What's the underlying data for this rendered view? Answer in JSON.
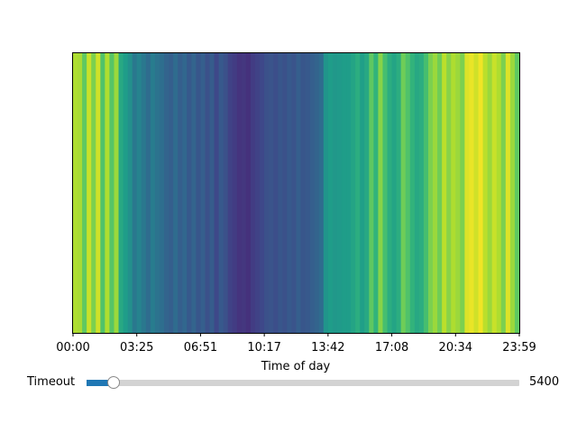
{
  "chart_data": {
    "type": "heatmap",
    "title": "",
    "xlabel": "Time of day",
    "ylabel": "",
    "colormap": "viridis",
    "x_ticks": [
      "00:00",
      "03:25",
      "06:51",
      "10:17",
      "13:42",
      "17:08",
      "20:34",
      "23:59"
    ],
    "x_range_minutes": [
      0,
      1439
    ],
    "value_range": [
      0,
      1
    ],
    "column_values": [
      0.88,
      0.87,
      0.75,
      0.92,
      0.8,
      0.93,
      0.72,
      0.88,
      0.73,
      0.85,
      0.6,
      0.55,
      0.5,
      0.4,
      0.45,
      0.4,
      0.35,
      0.42,
      0.38,
      0.36,
      0.32,
      0.3,
      0.35,
      0.3,
      0.33,
      0.28,
      0.32,
      0.27,
      0.3,
      0.25,
      0.29,
      0.22,
      0.28,
      0.25,
      0.2,
      0.18,
      0.15,
      0.16,
      0.14,
      0.18,
      0.2,
      0.22,
      0.25,
      0.26,
      0.24,
      0.27,
      0.25,
      0.28,
      0.26,
      0.3,
      0.27,
      0.28,
      0.3,
      0.32,
      0.35,
      0.52,
      0.55,
      0.53,
      0.54,
      0.55,
      0.55,
      0.58,
      0.62,
      0.56,
      0.6,
      0.75,
      0.65,
      0.82,
      0.7,
      0.62,
      0.58,
      0.62,
      0.78,
      0.72,
      0.65,
      0.6,
      0.62,
      0.7,
      0.8,
      0.85,
      0.78,
      0.9,
      0.82,
      0.88,
      0.85,
      0.8,
      0.95,
      0.97,
      0.93,
      0.98,
      0.9,
      0.85,
      0.92,
      0.88,
      0.8,
      0.95,
      0.85,
      0.75
    ]
  },
  "slider": {
    "label": "Timeout",
    "value": "5400",
    "position_fraction": 0.063,
    "fill_color": "#1f77b4"
  }
}
